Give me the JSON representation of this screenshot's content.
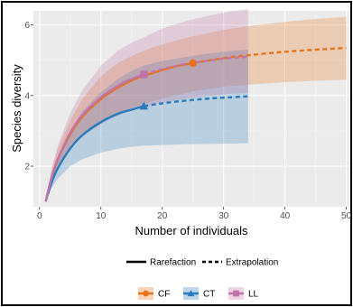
{
  "chart_data": {
    "type": "line",
    "xlabel": "Number of individuals",
    "ylabel": "Species diversity",
    "xlim": [
      -1,
      50.5
    ],
    "ylim": [
      0.85,
      6.4
    ],
    "x_ticks": [
      0,
      10,
      20,
      30,
      40,
      50
    ],
    "y_ticks": [
      2,
      4,
      6
    ],
    "grid": true,
    "panel_background": "#ebebeb",
    "line_type_legend": [
      {
        "label": "Rarefaction",
        "style": "solid"
      },
      {
        "label": "Extrapolation",
        "style": "dashed"
      }
    ],
    "series": [
      {
        "name": "CF",
        "color": "#e8731c",
        "marker": "circle",
        "observed": {
          "x": 25,
          "y": 4.92
        },
        "rarefaction": {
          "x": [
            1,
            2,
            3,
            5,
            7,
            10,
            13,
            16,
            19,
            22,
            25
          ],
          "y": [
            1.0,
            1.7,
            2.2,
            2.9,
            3.4,
            3.9,
            4.25,
            4.5,
            4.67,
            4.82,
            4.92
          ],
          "lower": [
            1.0,
            1.5,
            1.9,
            2.5,
            2.85,
            3.2,
            3.5,
            3.7,
            3.87,
            4.0,
            4.12
          ],
          "upper": [
            1.0,
            1.9,
            2.5,
            3.3,
            3.9,
            4.55,
            4.95,
            5.2,
            5.4,
            5.55,
            5.68
          ]
        },
        "extrapolation": {
          "x": [
            25,
            30,
            35,
            40,
            45,
            50
          ],
          "y": [
            4.92,
            5.06,
            5.16,
            5.24,
            5.3,
            5.35
          ],
          "lower": [
            4.12,
            4.25,
            4.32,
            4.38,
            4.42,
            4.45
          ],
          "upper": [
            5.68,
            5.86,
            5.99,
            6.09,
            6.17,
            6.23
          ]
        }
      },
      {
        "name": "CT",
        "color": "#2a7bbd",
        "marker": "triangle",
        "observed": {
          "x": 17,
          "y": 3.7
        },
        "rarefaction": {
          "x": [
            1,
            2,
            3,
            5,
            7,
            10,
            13,
            15,
            17
          ],
          "y": [
            1.0,
            1.55,
            1.95,
            2.5,
            2.88,
            3.25,
            3.5,
            3.6,
            3.7
          ],
          "lower": [
            1.0,
            1.4,
            1.65,
            2.0,
            2.2,
            2.38,
            2.5,
            2.55,
            2.58
          ],
          "upper": [
            1.0,
            1.75,
            2.3,
            3.0,
            3.55,
            4.1,
            4.5,
            4.7,
            4.85
          ]
        },
        "extrapolation": {
          "x": [
            17,
            20,
            24,
            28,
            31,
            34
          ],
          "y": [
            3.7,
            3.78,
            3.86,
            3.92,
            3.95,
            3.98
          ],
          "lower": [
            2.58,
            2.6,
            2.62,
            2.63,
            2.64,
            2.65
          ],
          "upper": [
            4.85,
            4.98,
            5.1,
            5.2,
            5.26,
            5.3
          ]
        }
      },
      {
        "name": "LL",
        "color": "#c274a8",
        "marker": "square",
        "observed": {
          "x": 17,
          "y": 4.6
        },
        "rarefaction": {
          "x": [
            1,
            2,
            3,
            5,
            7,
            10,
            13,
            15,
            17
          ],
          "y": [
            1.0,
            1.7,
            2.2,
            2.95,
            3.45,
            3.95,
            4.3,
            4.47,
            4.6
          ],
          "lower": [
            1.0,
            1.5,
            1.9,
            2.5,
            2.85,
            3.2,
            3.45,
            3.58,
            3.7
          ],
          "upper": [
            1.0,
            1.95,
            2.6,
            3.5,
            4.15,
            4.85,
            5.3,
            5.5,
            5.65
          ]
        },
        "extrapolation": {
          "x": [
            17,
            20,
            24,
            28,
            31,
            34
          ],
          "y": [
            4.6,
            4.75,
            4.9,
            5.0,
            5.06,
            5.1
          ],
          "lower": [
            3.7,
            3.8,
            3.92,
            4.0,
            4.05,
            4.08
          ],
          "upper": [
            5.65,
            5.9,
            6.12,
            6.28,
            6.38,
            6.45
          ]
        }
      }
    ]
  }
}
